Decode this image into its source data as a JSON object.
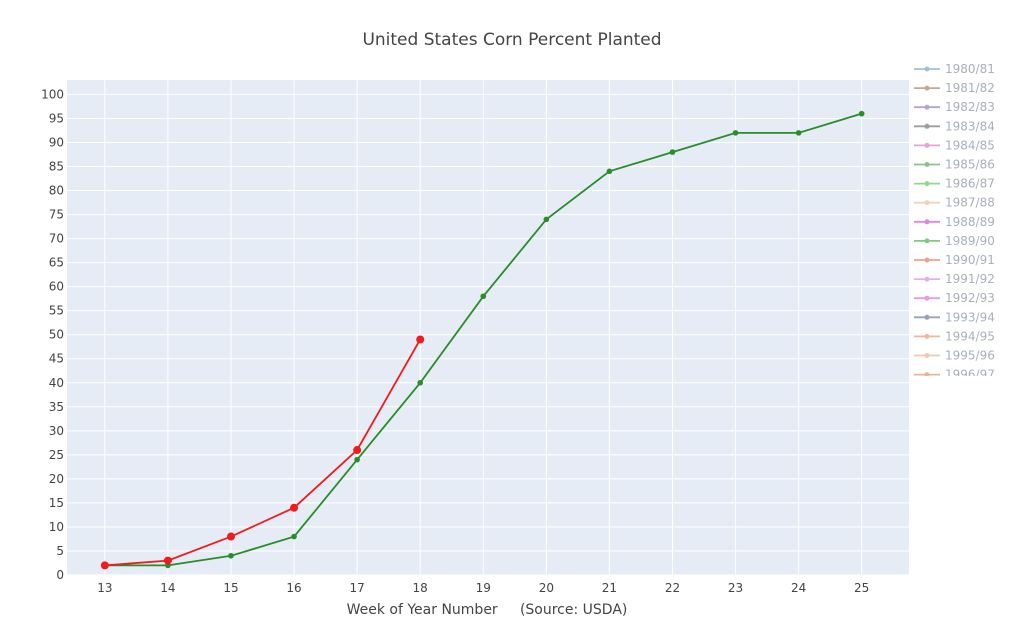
{
  "chart_data": {
    "type": "line",
    "title": "United States Corn Percent Planted",
    "xlabel": "Week of Year Number     (Source: USDA)",
    "ylabel": "",
    "xlim": [
      12.4,
      25.75
    ],
    "ylim": [
      0,
      103
    ],
    "x_ticks": [
      13,
      14,
      15,
      16,
      17,
      18,
      19,
      20,
      21,
      22,
      23,
      24,
      25
    ],
    "y_ticks": [
      0,
      5,
      10,
      15,
      20,
      25,
      30,
      35,
      40,
      45,
      50,
      55,
      60,
      65,
      70,
      75,
      80,
      85,
      90,
      95,
      100
    ],
    "grid": true,
    "legend_position": "right",
    "legend": [
      {
        "label": "1980/81",
        "color": "#a3c2cf"
      },
      {
        "label": "1981/82",
        "color": "#c4a995"
      },
      {
        "label": "1982/83",
        "color": "#b4a6cc"
      },
      {
        "label": "1983/84",
        "color": "#9e9e9e"
      },
      {
        "label": "1984/85",
        "color": "#e8a3cf"
      },
      {
        "label": "1985/86",
        "color": "#8fbf8f"
      },
      {
        "label": "1986/87",
        "color": "#8fd98f"
      },
      {
        "label": "1987/88",
        "color": "#f2d2b3"
      },
      {
        "label": "1988/89",
        "color": "#e088e0"
      },
      {
        "label": "1989/90",
        "color": "#7fcc7f"
      },
      {
        "label": "1990/91",
        "color": "#f0a090"
      },
      {
        "label": "1991/92",
        "color": "#e8b0e8"
      },
      {
        "label": "1992/93",
        "color": "#e898e8"
      },
      {
        "label": "1993/94",
        "color": "#99a3b3"
      },
      {
        "label": "1994/95",
        "color": "#f5b59a"
      },
      {
        "label": "1995/96",
        "color": "#f5c7ad"
      },
      {
        "label": "1996/97",
        "color": "#e8b59a"
      }
    ],
    "series": [
      {
        "color": "#2a8c2a",
        "x": [
          13,
          14,
          15,
          16,
          17,
          18,
          19,
          20,
          21,
          22,
          23,
          24,
          25
        ],
        "values": [
          2,
          2,
          4,
          8,
          24,
          40,
          58,
          74,
          84,
          88,
          92,
          92,
          96
        ]
      },
      {
        "color": "#ee1c1c",
        "x": [
          13,
          14,
          15,
          16,
          17,
          18
        ],
        "values": [
          2,
          3,
          8,
          14,
          26,
          49
        ]
      }
    ]
  }
}
